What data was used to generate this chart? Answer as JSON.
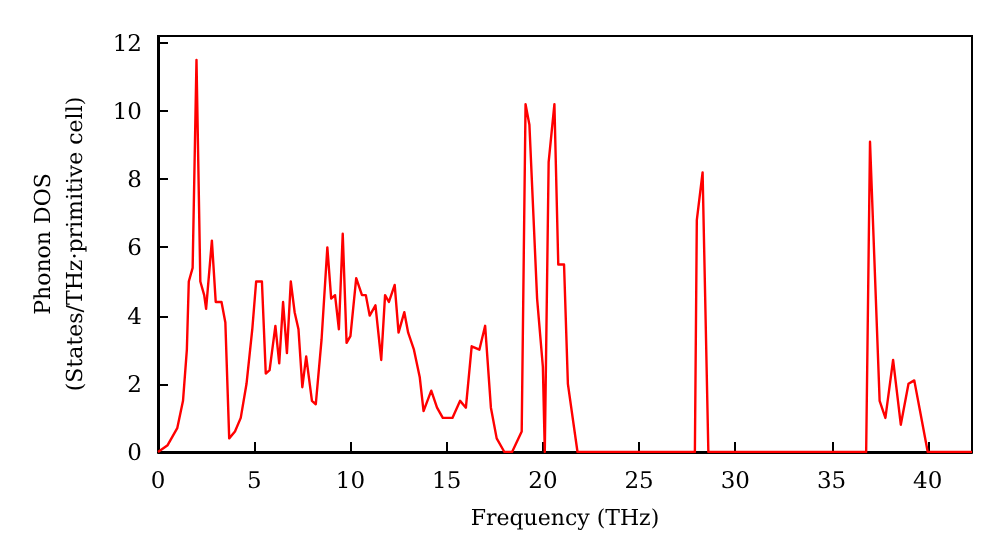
{
  "chart_data": {
    "type": "line",
    "xlabel": "Frequency (THz)",
    "ylabel": "Phonon DOS\n(States/THz·primitive cell)",
    "xlim": [
      0,
      42.3
    ],
    "ylim": [
      0,
      12.2
    ],
    "xticks": [
      0,
      5,
      10,
      15,
      20,
      25,
      30,
      35,
      40
    ],
    "yticks": [
      0,
      2,
      4,
      6,
      8,
      10,
      12
    ],
    "grid": false,
    "marker": "none",
    "line_style": "solid",
    "series": [
      {
        "color": "#ff0000",
        "x": [
          0,
          0.5,
          1,
          1.3,
          1.5,
          1.6,
          1.8,
          2,
          2.2,
          2.4,
          2.5,
          2.8,
          3,
          3.3,
          3.5,
          3.7,
          4,
          4.3,
          4.6,
          4.9,
          5.1,
          5.4,
          5.6,
          5.8,
          6.1,
          6.3,
          6.5,
          6.7,
          6.9,
          7.1,
          7.3,
          7.5,
          7.7,
          8,
          8.2,
          8.5,
          8.8,
          9,
          9.2,
          9.4,
          9.6,
          9.8,
          10,
          10.3,
          10.6,
          10.8,
          11,
          11.3,
          11.6,
          11.8,
          12,
          12.3,
          12.5,
          12.8,
          13,
          13.3,
          13.6,
          13.8,
          14.2,
          14.5,
          14.8,
          15.3,
          15.7,
          16,
          16.3,
          16.7,
          17,
          17.3,
          17.6,
          18,
          18.4,
          18.9,
          19.1,
          19.3,
          19.7,
          20,
          20.1,
          20.3,
          20.6,
          20.8,
          21.1,
          21.3,
          21.8,
          27.9,
          28,
          28.3,
          28.6,
          36.8,
          37,
          37.5,
          37.8,
          38.2,
          38.6,
          39,
          39.3,
          39.6,
          40,
          42.3
        ],
        "values": [
          0,
          0.2,
          0.7,
          1.5,
          3,
          5,
          5.4,
          11.5,
          5,
          4.6,
          4.2,
          6.2,
          4.4,
          4.4,
          3.8,
          0.4,
          0.6,
          1,
          2,
          3.6,
          5,
          5,
          2.3,
          2.4,
          3.7,
          2.6,
          4.4,
          2.9,
          5,
          4.1,
          3.6,
          1.9,
          2.8,
          1.5,
          1.4,
          3.3,
          6,
          4.5,
          4.6,
          3.6,
          6.4,
          3.2,
          3.4,
          5.1,
          4.6,
          4.6,
          4,
          4.3,
          2.7,
          4.6,
          4.4,
          4.9,
          3.5,
          4.1,
          3.5,
          3,
          2.2,
          1.2,
          1.8,
          1.3,
          1,
          1,
          1.5,
          1.3,
          3.1,
          3,
          3.7,
          1.3,
          0.4,
          0,
          0,
          0.6,
          10.2,
          9.6,
          4.5,
          2.5,
          0,
          8.5,
          10.2,
          5.5,
          5.5,
          2,
          0,
          0,
          6.8,
          8.2,
          0,
          0,
          9.1,
          1.5,
          1,
          2.7,
          0.8,
          2,
          2.1,
          1.2,
          0,
          0
        ]
      }
    ]
  }
}
